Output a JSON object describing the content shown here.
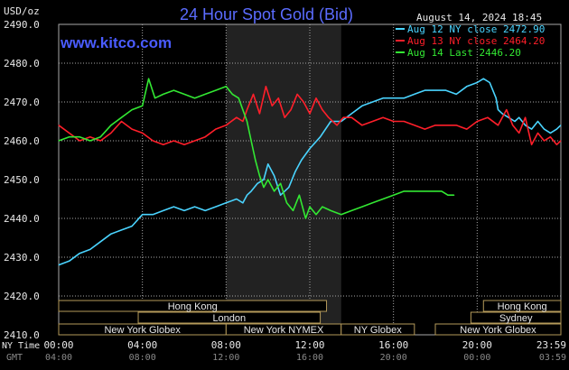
{
  "header": {
    "unit": "USD/oz",
    "title": "24 Hour Spot Gold (Bid)",
    "datetime": "August 14, 2024 18:45",
    "site": "www.kitco.com"
  },
  "colors": {
    "background": "#000000",
    "grid": "#a8a8a8",
    "shade": "#222222",
    "aug12": "#4ad4ff",
    "aug13": "#ff1f2a",
    "aug14": "#33e833",
    "session_fill": "#000000",
    "session_border": "#b49a5a"
  },
  "time_axis": {
    "ny_label": "NY Time",
    "gmt_label": "GMT",
    "ny_ticks": [
      "00:00",
      "04:00",
      "08:00",
      "12:00",
      "16:00",
      "20:00",
      "23:59"
    ],
    "gmt_ticks": [
      "04:00",
      "08:00",
      "12:00",
      "16:00",
      "20:00",
      "00:00",
      "03:59"
    ]
  },
  "sessions": [
    {
      "label": "Hong Kong",
      "start": 0,
      "end": 12.8
    },
    {
      "label": "Hong Kong",
      "start": 20.3,
      "end": 24
    },
    {
      "label": "London",
      "start": 3.8,
      "end": 12.5
    },
    {
      "label": "Sydney",
      "start": 19.7,
      "end": 24
    },
    {
      "label": "New York Globex",
      "start": 0,
      "end": 8.0
    },
    {
      "label": "New York NYMEX",
      "start": 8.0,
      "end": 13.5
    },
    {
      "label": "NY Globex",
      "start": 13.5,
      "end": 17.0
    },
    {
      "label": "New York Globex",
      "start": 18.0,
      "end": 24
    }
  ],
  "chart_data": {
    "type": "line",
    "title": "24 Hour Spot Gold (Bid)",
    "ylabel": "USD/oz",
    "xlabel": "NY Time",
    "ylim": [
      2410,
      2490
    ],
    "xlim": [
      0,
      24
    ],
    "y_ticks": [
      "2410.0",
      "2420.0",
      "2430.0",
      "2440.0",
      "2450.0",
      "2460.0",
      "2470.0",
      "2480.0",
      "2490.0"
    ],
    "grid": true,
    "legend_position": "top-right",
    "shaded_hours": [
      8,
      13.5
    ],
    "series": [
      {
        "name": "Aug 12 NY close 2472.90",
        "color": "#4ad4ff",
        "x": [
          0,
          0.5,
          1.0,
          1.5,
          2.0,
          2.5,
          3.0,
          3.5,
          4.0,
          4.5,
          5.0,
          5.5,
          6.0,
          6.5,
          7.0,
          7.5,
          8.0,
          8.5,
          8.8,
          9.0,
          9.2,
          9.5,
          9.8,
          10.0,
          10.3,
          10.6,
          11.0,
          11.3,
          11.6,
          12.0,
          12.5,
          13.0,
          13.5,
          14.0,
          14.5,
          15.0,
          15.5,
          16.0,
          16.5,
          17.0,
          17.5,
          18.0,
          18.5,
          19.0,
          19.5,
          20.0,
          20.3,
          20.6,
          20.9,
          21.0,
          21.2,
          21.5,
          21.8,
          22.0,
          22.3,
          22.6,
          22.9,
          23.2,
          23.5,
          23.8,
          23.99
        ],
        "values": [
          2428,
          2429,
          2431,
          2432,
          2434,
          2436,
          2437,
          2438,
          2441,
          2441,
          2442,
          2443,
          2442,
          2443,
          2442,
          2443,
          2444,
          2445,
          2444,
          2446,
          2447,
          2449,
          2450,
          2454,
          2451,
          2446,
          2448,
          2452,
          2455,
          2458,
          2461,
          2465,
          2465,
          2467,
          2469,
          2470,
          2471,
          2471,
          2471,
          2472,
          2473,
          2473,
          2473,
          2472,
          2474,
          2475,
          2476,
          2475,
          2471,
          2468,
          2467,
          2466,
          2465,
          2466,
          2464,
          2463,
          2465,
          2463,
          2462,
          2463,
          2464
        ]
      },
      {
        "name": "Aug 13 NY close 2464.20",
        "color": "#ff1f2a",
        "x": [
          0,
          0.5,
          1.0,
          1.5,
          2.0,
          2.5,
          3.0,
          3.5,
          4.0,
          4.5,
          5.0,
          5.5,
          6.0,
          6.5,
          7.0,
          7.5,
          8.0,
          8.5,
          8.8,
          9.0,
          9.3,
          9.6,
          9.9,
          10.2,
          10.5,
          10.8,
          11.1,
          11.4,
          11.7,
          12.0,
          12.3,
          12.6,
          12.9,
          13.3,
          13.6,
          14.0,
          14.5,
          15.0,
          15.5,
          16.0,
          16.5,
          17.0,
          17.5,
          18.0,
          18.5,
          19.0,
          19.5,
          20.0,
          20.5,
          21.0,
          21.4,
          21.7,
          22.0,
          22.3,
          22.6,
          22.9,
          23.2,
          23.5,
          23.8,
          23.99
        ],
        "values": [
          2464,
          2462,
          2460,
          2461,
          2460,
          2462,
          2465,
          2463,
          2462,
          2460,
          2459,
          2460,
          2459,
          2460,
          2461,
          2463,
          2464,
          2466,
          2465,
          2468,
          2472,
          2467,
          2474,
          2469,
          2471,
          2466,
          2468,
          2472,
          2470,
          2467,
          2471,
          2468,
          2466,
          2464,
          2466,
          2466,
          2464,
          2465,
          2466,
          2465,
          2465,
          2464,
          2463,
          2464,
          2464,
          2464,
          2463,
          2465,
          2466,
          2464,
          2468,
          2464,
          2462,
          2466,
          2459,
          2462,
          2460,
          2461,
          2459,
          2460
        ]
      },
      {
        "name": "Aug 14 Last 2446.20",
        "color": "#33e833",
        "x": [
          0,
          0.5,
          1.0,
          1.5,
          2.0,
          2.5,
          3.0,
          3.5,
          4.0,
          4.3,
          4.6,
          5.0,
          5.5,
          6.0,
          6.5,
          7.0,
          7.5,
          8.0,
          8.3,
          8.6,
          9.0,
          9.2,
          9.4,
          9.6,
          9.8,
          10.0,
          10.3,
          10.6,
          10.9,
          11.2,
          11.5,
          11.8,
          12.0,
          12.3,
          12.6,
          13.0,
          13.5,
          14.0,
          14.5,
          15.0,
          15.5,
          16.0,
          16.5,
          17.0,
          17.5,
          18.0,
          18.3,
          18.6,
          18.9
        ],
        "values": [
          2460,
          2461,
          2461,
          2460,
          2461,
          2464,
          2466,
          2468,
          2469,
          2476,
          2471,
          2472,
          2473,
          2472,
          2471,
          2472,
          2473,
          2474,
          2472,
          2471,
          2465,
          2460,
          2455,
          2451,
          2448,
          2450,
          2447,
          2449,
          2444,
          2442,
          2446,
          2440,
          2443,
          2441,
          2443,
          2442,
          2441,
          2442,
          2443,
          2444,
          2445,
          2446,
          2447,
          2447,
          2447,
          2447,
          2447,
          2446,
          2446
        ]
      }
    ]
  }
}
